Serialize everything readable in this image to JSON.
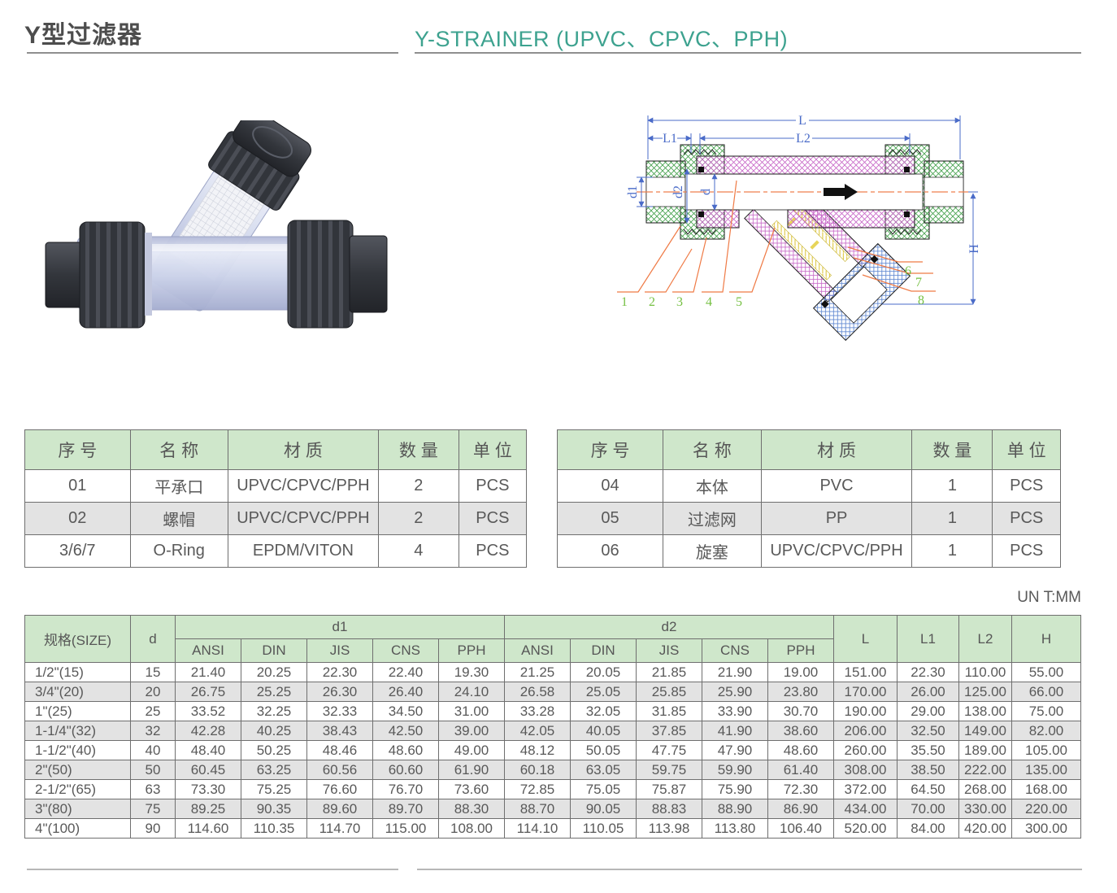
{
  "page": {
    "title_zh": "Y型过滤器",
    "title_en": "Y-STRAINER (UPVC、CPVC、PPH)",
    "unit_note": "UN T:MM"
  },
  "colors": {
    "accent_teal": "#3da28f",
    "table_header_green": "#cfe7cb",
    "row_alt_gray": "#e3e3e3",
    "border_gray": "#6f6f6f",
    "dim_blue": "#4a6bc8",
    "leader_orange": "#ef7a45",
    "part_number_green": "#76c043"
  },
  "diagram": {
    "labels": {
      "L": "L",
      "L1": "L1",
      "L2": "L2",
      "d1": "d1",
      "d2": "d2",
      "d": "d",
      "H": "H"
    },
    "part_numbers": [
      "1",
      "2",
      "3",
      "4",
      "5",
      "6",
      "7",
      "8"
    ]
  },
  "parts_table_headers": [
    "序 号",
    "名 称",
    "材 质",
    "数 量",
    "单 位"
  ],
  "parts_left": {
    "rows": [
      [
        "01",
        "平承口",
        "UPVC/CPVC/PPH",
        "2",
        "PCS"
      ],
      [
        "02",
        "螺帽",
        "UPVC/CPVC/PPH",
        "2",
        "PCS"
      ],
      [
        "3/6/7",
        "O-Ring",
        "EPDM/VITON",
        "4",
        "PCS"
      ]
    ]
  },
  "parts_right": {
    "rows": [
      [
        "04",
        "本体",
        "PVC",
        "1",
        "PCS"
      ],
      [
        "05",
        "过滤网",
        "PP",
        "1",
        "PCS"
      ],
      [
        "06",
        "旋塞",
        "UPVC/CPVC/PPH",
        "1",
        "PCS"
      ]
    ]
  },
  "dims_table": {
    "header": {
      "size": "规格(SIZE)",
      "d": "d",
      "d1_group": "d1",
      "d2_group": "d2",
      "L": "L",
      "L1": "L1",
      "L2": "L2",
      "H": "H",
      "standards": [
        "ANSI",
        "DIN",
        "JIS",
        "CNS",
        "PPH"
      ]
    },
    "rows": [
      [
        "1/2\"(15)",
        "15",
        "21.40",
        "20.25",
        "22.30",
        "22.40",
        "19.30",
        "21.25",
        "20.05",
        "21.85",
        "21.90",
        "19.00",
        "151.00",
        "22.30",
        "110.00",
        "55.00"
      ],
      [
        "3/4\"(20)",
        "20",
        "26.75",
        "25.25",
        "26.30",
        "26.40",
        "24.10",
        "26.58",
        "25.05",
        "25.85",
        "25.90",
        "23.80",
        "170.00",
        "26.00",
        "125.00",
        "66.00"
      ],
      [
        "1\"(25)",
        "25",
        "33.52",
        "32.25",
        "32.33",
        "34.50",
        "31.00",
        "33.28",
        "32.05",
        "31.85",
        "33.90",
        "30.70",
        "190.00",
        "29.00",
        "138.00",
        "75.00"
      ],
      [
        "1-1/4\"(32)",
        "32",
        "42.28",
        "40.25",
        "38.43",
        "42.50",
        "39.00",
        "42.05",
        "40.05",
        "37.85",
        "41.90",
        "38.60",
        "206.00",
        "32.50",
        "149.00",
        "82.00"
      ],
      [
        "1-1/2\"(40)",
        "40",
        "48.40",
        "50.25",
        "48.46",
        "48.60",
        "49.00",
        "48.12",
        "50.05",
        "47.75",
        "47.90",
        "48.60",
        "260.00",
        "35.50",
        "189.00",
        "105.00"
      ],
      [
        "2\"(50)",
        "50",
        "60.45",
        "63.25",
        "60.56",
        "60.60",
        "61.90",
        "60.18",
        "63.05",
        "59.75",
        "59.90",
        "61.40",
        "308.00",
        "38.50",
        "222.00",
        "135.00"
      ],
      [
        "2-1/2\"(65)",
        "63",
        "73.30",
        "75.25",
        "76.60",
        "76.70",
        "73.60",
        "72.85",
        "75.05",
        "75.87",
        "75.90",
        "72.30",
        "372.00",
        "64.50",
        "268.00",
        "168.00"
      ],
      [
        "3\"(80)",
        "75",
        "89.25",
        "90.35",
        "89.60",
        "89.70",
        "88.30",
        "88.70",
        "90.05",
        "88.83",
        "88.90",
        "86.90",
        "434.00",
        "70.00",
        "330.00",
        "220.00"
      ],
      [
        "4\"(100)",
        "90",
        "114.60",
        "110.35",
        "114.70",
        "115.00",
        "108.00",
        "114.10",
        "110.05",
        "113.98",
        "113.80",
        "106.40",
        "520.00",
        "84.00",
        "420.00",
        "300.00"
      ]
    ]
  }
}
